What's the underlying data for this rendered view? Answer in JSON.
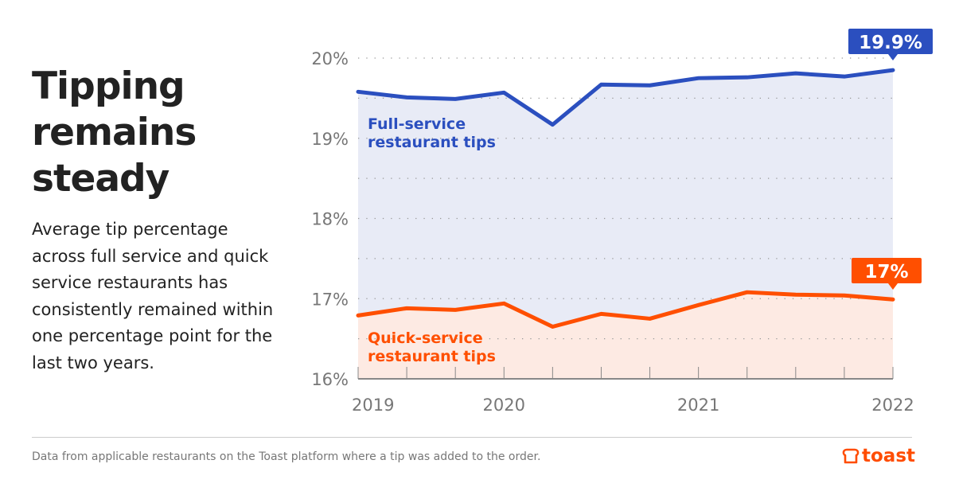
{
  "title_lines": [
    "Tipping",
    "remains",
    "steady"
  ],
  "subtitle": "Average tip percentage across full service and quick service restaurants has consistently remained within one percentage point for the last two years.",
  "footnote": "Data from applicable restaurants on the Toast platform where a tip was added to the order.",
  "logo_text": "toast",
  "colors": {
    "full_service": "#2b4fbf",
    "quick_service": "#ff4f00",
    "full_fill": "#e8ebf6",
    "quick_fill": "#fdeae3"
  },
  "chart_data": {
    "type": "area",
    "x_tick_labels": [
      {
        "index": 0,
        "label": "2019"
      },
      {
        "index": 3,
        "label": "2020"
      },
      {
        "index": 7,
        "label": "2021"
      },
      {
        "index": 11,
        "label": "2022"
      }
    ],
    "y_ticks": [
      16,
      17,
      18,
      19,
      20
    ],
    "y_tick_labels": [
      "16%",
      "17%",
      "18%",
      "19%",
      "20%"
    ],
    "ylim": [
      16,
      20
    ],
    "grid": "dotted horizontal every 0.5",
    "series": [
      {
        "name": "Full-service restaurant tips",
        "name_lines": [
          "Full-service",
          "restaurant tips"
        ],
        "values": [
          19.58,
          19.51,
          19.49,
          19.57,
          19.17,
          19.67,
          19.66,
          19.75,
          19.76,
          19.81,
          19.77,
          19.85
        ],
        "end_label": "19.9%"
      },
      {
        "name": "Quick-service restaurant tips",
        "name_lines": [
          "Quick-service",
          "restaurant tips"
        ],
        "values": [
          16.79,
          16.88,
          16.86,
          16.94,
          16.65,
          16.81,
          16.75,
          16.92,
          17.08,
          17.05,
          17.04,
          16.99
        ],
        "end_label": "17%"
      }
    ]
  }
}
